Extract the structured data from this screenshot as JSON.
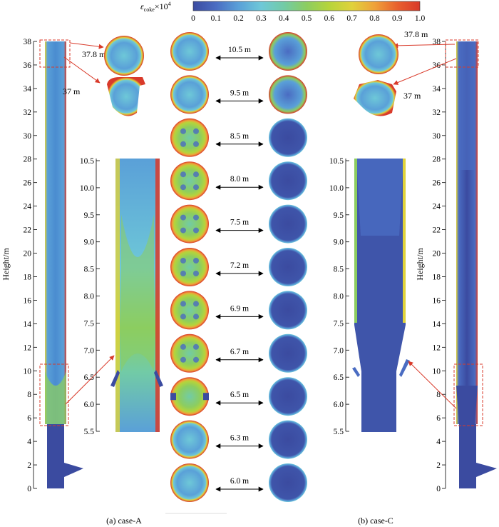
{
  "colorbar": {
    "label_main": "ε",
    "label_sub": "coke",
    "label_mult": "×10",
    "label_exp": "4",
    "ticks": [
      "0",
      "0.1",
      "0.2",
      "0.3",
      "0.4",
      "0.5",
      "0.6",
      "0.7",
      "0.8",
      "0.9",
      "1.0"
    ],
    "stops": [
      "#3b4ba0",
      "#4a6cc2",
      "#5aa0d8",
      "#6ec8d8",
      "#72cba6",
      "#8ccd60",
      "#b6d43a",
      "#e0d23a",
      "#efa23a",
      "#e8602e",
      "#d93a2a"
    ]
  },
  "left_axis": {
    "title": "Height/m",
    "ticks": [
      "0",
      "2",
      "4",
      "6",
      "8",
      "10",
      "12",
      "14",
      "16",
      "18",
      "20",
      "22",
      "24",
      "26",
      "28",
      "30",
      "32",
      "34",
      "36",
      "38"
    ]
  },
  "right_axis": {
    "title": "Height/m",
    "ticks": [
      "0",
      "2",
      "4",
      "6",
      "8",
      "10",
      "12",
      "14",
      "16",
      "18",
      "20",
      "22",
      "24",
      "26",
      "28",
      "30",
      "32",
      "34",
      "36",
      "38"
    ]
  },
  "zoom_axis": {
    "ticks": [
      "5.5",
      "6.0",
      "6.5",
      "7.0",
      "7.5",
      "8.0",
      "8.5",
      "9.0",
      "9.5",
      "10.0",
      "10.5"
    ]
  },
  "top_sections": {
    "upper": "37.8 m",
    "lower": "37 m"
  },
  "sections": [
    "10.5 m",
    "9.5 m",
    "8.5 m",
    "8.0 m",
    "7.5 m",
    "7.2 m",
    "6.9 m",
    "6.7 m",
    "6.5 m",
    "6.3 m",
    "6.0 m"
  ],
  "captions": {
    "left": "(a) case-A",
    "right": "(b) case-C"
  },
  "colors": {
    "low": "#3b4ba0",
    "mid_low": "#5aa0d8",
    "mid": "#6ec8d8",
    "green": "#8ccd60",
    "high": "#d93a2a",
    "annotation": "#d93a2a"
  }
}
